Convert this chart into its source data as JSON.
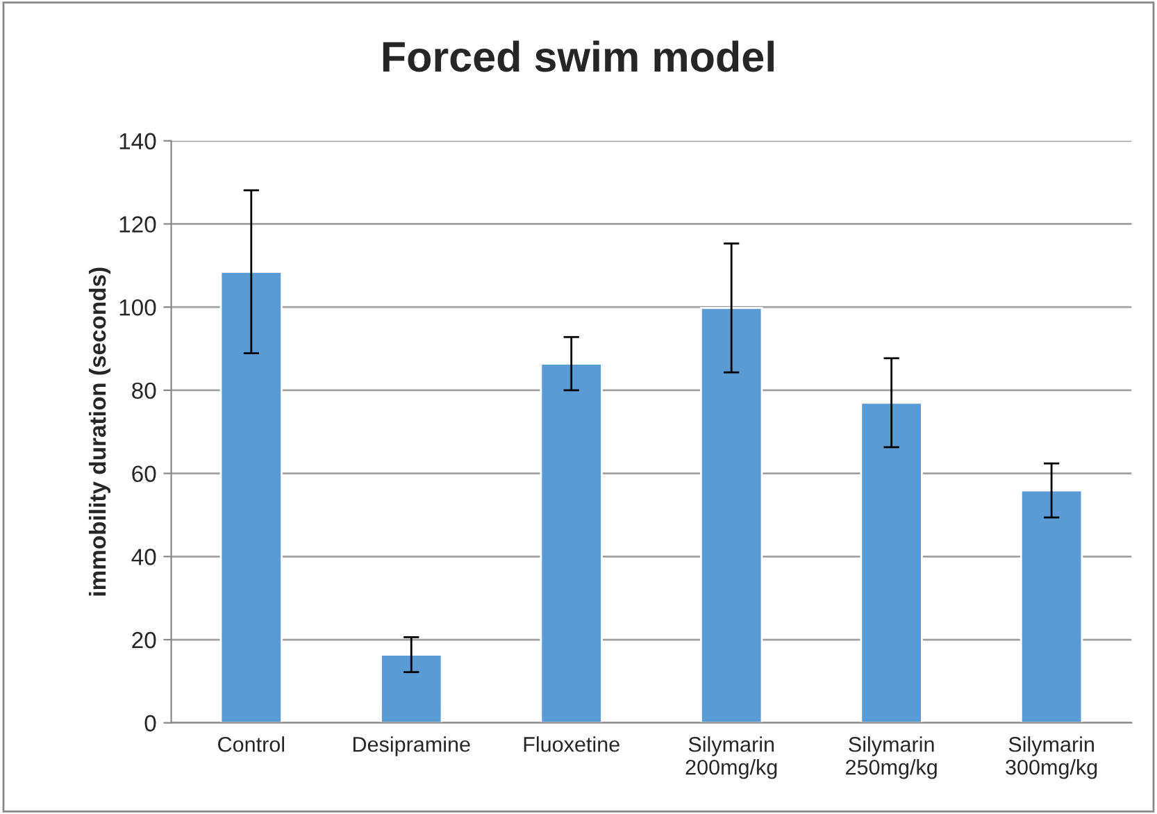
{
  "chart_data": {
    "type": "bar",
    "title": "Forced swim model",
    "ylabel": "immobility duration (seconds)",
    "categories": [
      "Control",
      "Desipramine",
      "Fluoxetine",
      "Silymarin\n200mg/kg",
      "Silymarin\n250mg/kg",
      "Silymarin\n300mg/kg"
    ],
    "values": [
      108.5,
      16.4,
      86.4,
      99.8,
      77,
      55.9
    ],
    "errors": [
      19.6,
      4.2,
      6.4,
      15.5,
      10.7,
      6.5
    ],
    "color": "#5b9bd5",
    "ylim": [
      0,
      140
    ],
    "yticks": [
      0,
      20,
      40,
      60,
      80,
      100,
      120,
      140
    ],
    "grid": "y",
    "legend": false
  }
}
